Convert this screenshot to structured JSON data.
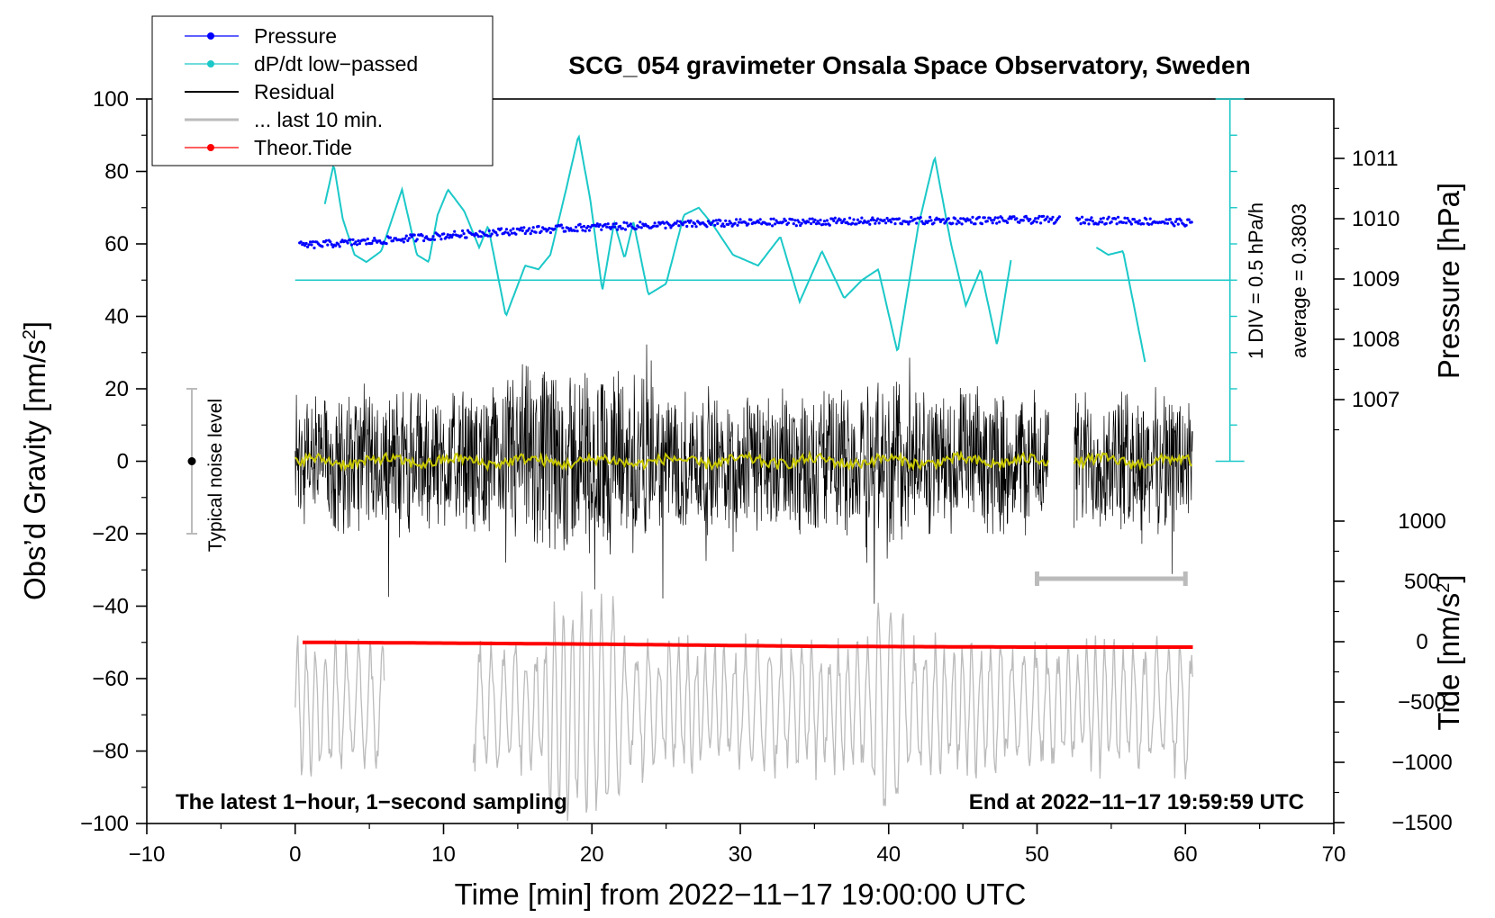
{
  "chart_data": {
    "type": "line",
    "title": "SCG_054 gravimeter Onsala Space Observatory, Sweden",
    "xlabel": "Time [min] from 2022−11−17 19:00:00 UTC",
    "ylabel": "Obs’d Gravity [nm/s",
    "ylabel_sup": "2",
    "ylabel_end": "]",
    "xlim": [
      -10,
      70
    ],
    "ylim": [
      -100,
      100
    ],
    "x_ticks": [
      "−10",
      "0",
      "10",
      "20",
      "30",
      "40",
      "50",
      "60",
      "70"
    ],
    "y_ticks": [
      "−100",
      "−80",
      "−60",
      "−40",
      "−20",
      "0",
      "20",
      "40",
      "60",
      "80",
      "100"
    ],
    "pressure_axis": {
      "label": "Pressure [hPa]",
      "ticks": [
        "1007",
        "1008",
        "1009",
        "1010",
        "1011"
      ],
      "values": [
        1007,
        1008,
        1009,
        1010,
        1011
      ],
      "range_hpa": [
        1006,
        1012
      ]
    },
    "tide_axis": {
      "label": "Tide [nm/s",
      "label_sup": "2",
      "label_end": "]",
      "ticks": [
        "−1500",
        "−1000",
        "−500",
        "0",
        "500",
        "1000"
      ],
      "values": [
        -1500,
        -1000,
        -500,
        0,
        500,
        1000
      ]
    },
    "dpdt_scale": {
      "div_label": "1 DIV = 0.5 hPa/h",
      "average_label": "average = 0.3803",
      "baseline_gravity": 50
    },
    "noise_label": "Typical noise level",
    "noise_range": [
      -20,
      20
    ],
    "note_left": "The latest 1−hour, 1−second sampling",
    "note_right": "End at 2022−11−17 19:59:59 UTC",
    "legend": [
      {
        "label": "Pressure",
        "color": "#0000ff",
        "marker": true
      },
      {
        "label": "dP/dt low−passed",
        "color": "#1bc8c8",
        "marker": true
      },
      {
        "label": "Residual",
        "color": "#000000",
        "marker": false
      },
      {
        "label": "... last 10 min.",
        "color": "#bbbbbb",
        "marker": false
      },
      {
        "label": "Theor.Tide",
        "color": "#ff0000",
        "marker": true
      }
    ],
    "series": [
      {
        "name": "Pressure",
        "units": "hPa",
        "x": [
          0,
          5,
          10,
          15,
          20,
          25,
          30,
          35,
          40,
          45,
          50,
          51.5,
          52.5,
          56,
          60.5
        ],
        "values": [
          1009.55,
          1009.62,
          1009.72,
          1009.8,
          1009.86,
          1009.9,
          1009.93,
          1009.95,
          1009.96,
          1009.97,
          1009.98,
          1009.98,
          1009.97,
          1009.97,
          1009.93
        ]
      },
      {
        "name": "dP/dt low−passed",
        "units": "gravity-axis scale",
        "x": [
          2,
          2.6,
          3.2,
          4,
          4.8,
          5.8,
          7.2,
          8.2,
          9,
          9.6,
          10.3,
          11.4,
          12.4,
          13,
          14.2,
          15.5,
          16.4,
          17.2,
          18.2,
          19.1,
          19.9,
          20.7,
          21.5,
          22.2,
          22.8,
          23.8,
          25,
          26.2,
          27.2,
          28.2,
          29.5,
          31.2,
          32.7,
          34,
          35.5,
          37,
          38.2,
          39.3,
          40.6,
          42,
          43.1,
          44.2,
          45.2,
          46.2,
          47.3,
          48.3,
          54,
          54.8,
          55.8,
          57.3
        ],
        "values": [
          71,
          82,
          67,
          57,
          55,
          58,
          75,
          57,
          55,
          68,
          75,
          69,
          59,
          65,
          40,
          54,
          53,
          57,
          74,
          90,
          72,
          47,
          66,
          56,
          66,
          46,
          49,
          68,
          70,
          65,
          57,
          54,
          62,
          44,
          58,
          45,
          50,
          53,
          30,
          65,
          84,
          60,
          43,
          53,
          32,
          57,
          59,
          57,
          58,
          27
        ]
      },
      {
        "name": "Residual",
        "units": "nm/s2",
        "x_range": [
          0,
          60.5
        ],
        "gap": [
          50.8,
          52.5
        ],
        "envelope": 22
      },
      {
        "name": "Residual smoothed",
        "units": "nm/s2",
        "x_range": [
          0,
          60.5
        ],
        "values": [
          0
        ]
      },
      {
        "name": "... last 10 min.",
        "units": "nm/s2",
        "x_segments": [
          [
            0,
            6
          ],
          [
            12,
            60.5
          ]
        ],
        "center": -68,
        "amplitude": 15
      },
      {
        "name": "Theor.Tide",
        "units": "nm/s2",
        "x": [
          0.5,
          8,
          20,
          35,
          50,
          60.5
        ],
        "values": [
          -5,
          -10,
          -20,
          -38,
          -45,
          -45
        ]
      }
    ],
    "last10_bar": {
      "x_range": [
        50,
        60
      ]
    }
  },
  "colors": {
    "pressure": "#0000ff",
    "dpdt": "#1bc8c8",
    "residual": "#000000",
    "smoothed": "#c8c800",
    "last10": "#bbbbbb",
    "tide": "#ff0000",
    "noise": "#bbbbbb"
  }
}
